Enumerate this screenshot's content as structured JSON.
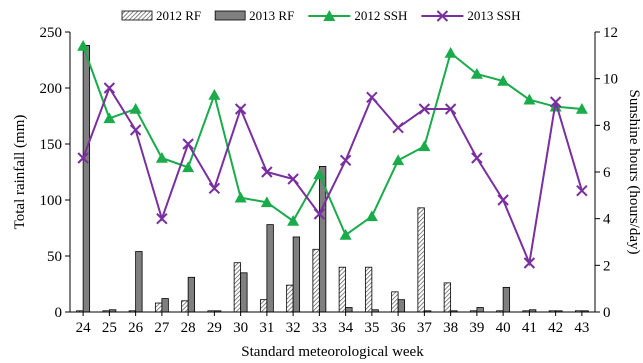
{
  "chart_data": {
    "type": "bar",
    "xlabel": "Standard meteorological week",
    "ylabel": "Total rainfall (mm)",
    "y2label": "Sunshine hours (hours/day)",
    "categories": [
      "24",
      "25",
      "26",
      "27",
      "28",
      "29",
      "30",
      "31",
      "32",
      "33",
      "34",
      "35",
      "36",
      "37",
      "38",
      "39",
      "40",
      "41",
      "42",
      "43"
    ],
    "ylim": [
      0,
      250
    ],
    "y2lim": [
      0,
      12
    ],
    "yticks": [
      0,
      50,
      100,
      150,
      200,
      250
    ],
    "y2ticks": [
      0,
      2,
      4,
      6,
      8,
      10,
      12
    ],
    "legend_position": "top",
    "series": [
      {
        "name": "2012 RF",
        "kind": "bar",
        "axis": "left",
        "pattern": "hatched",
        "values": [
          0,
          0,
          0,
          8,
          10,
          1,
          44,
          11,
          24,
          56,
          40,
          40,
          18,
          93,
          26,
          0,
          0,
          0,
          0,
          0
        ]
      },
      {
        "name": "2013 RF",
        "kind": "bar",
        "axis": "right_is_no",
        "pattern": "solid-gray",
        "values": [
          238,
          2,
          54,
          12,
          31,
          1,
          35,
          78,
          67,
          130,
          4,
          2,
          11,
          0,
          0,
          4,
          22,
          2,
          0,
          1
        ]
      },
      {
        "name": "2012 SSH",
        "kind": "line",
        "axis": "right",
        "color": "#1aab4b",
        "marker": "triangle",
        "values": [
          11.4,
          8.3,
          8.7,
          6.6,
          6.2,
          9.3,
          4.9,
          4.7,
          3.9,
          5.9,
          3.3,
          4.1,
          6.5,
          7.1,
          11.1,
          10.2,
          9.9,
          9.1,
          8.8,
          8.7
        ]
      },
      {
        "name": "2013 SSH",
        "kind": "line",
        "axis": "right",
        "color": "#7a2fa0",
        "marker": "x",
        "values": [
          6.6,
          9.6,
          7.8,
          4.0,
          7.2,
          5.3,
          8.7,
          6.0,
          5.7,
          4.2,
          6.5,
          9.2,
          7.9,
          8.7,
          8.7,
          6.6,
          4.8,
          2.1,
          9.0,
          5.2
        ]
      }
    ]
  }
}
